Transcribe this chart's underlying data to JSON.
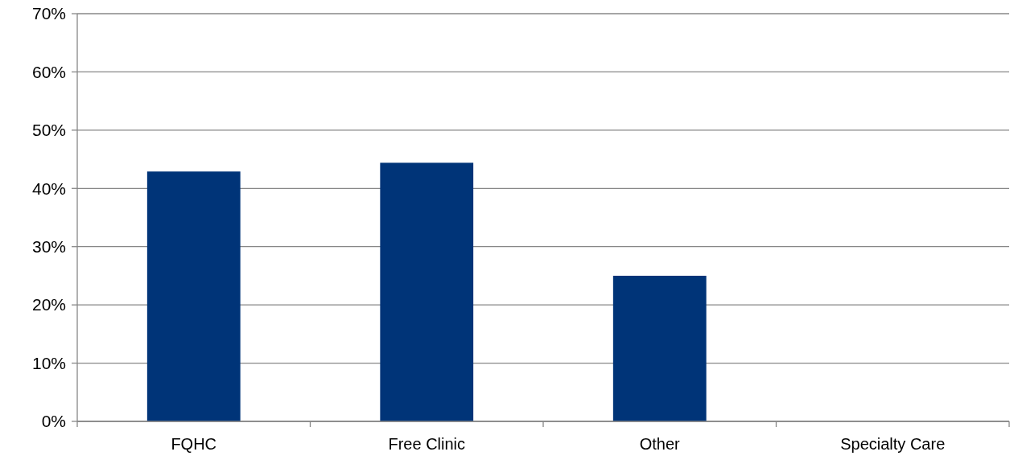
{
  "chart_data": {
    "type": "bar",
    "categories": [
      "FQHC",
      "Free Clinic",
      "Other",
      "Specialty Care"
    ],
    "values": [
      42.9,
      44.4,
      25,
      0
    ],
    "color": "#003478",
    "ylim": [
      0,
      70
    ],
    "yticks": [
      {
        "value": 0,
        "label": "0%"
      },
      {
        "value": 10,
        "label": "10%"
      },
      {
        "value": 20,
        "label": "20%"
      },
      {
        "value": 30,
        "label": "30%"
      },
      {
        "value": 40,
        "label": "40%"
      },
      {
        "value": 50,
        "label": "50%"
      },
      {
        "value": 60,
        "label": "60%"
      },
      {
        "value": 70,
        "label": "70%"
      }
    ],
    "grid": "y"
  }
}
